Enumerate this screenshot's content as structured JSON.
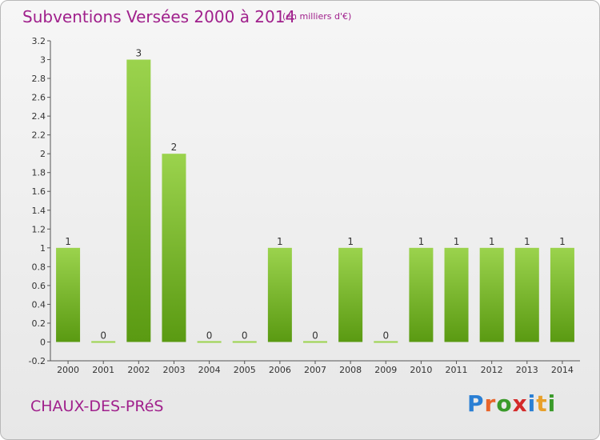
{
  "title": "Subventions Versées 2000 à 2014",
  "subtitle": "(en milliers d'€)",
  "city": "CHAUX-DES-PRéS",
  "logo": {
    "text": "Proxiti",
    "letter_colors": [
      "#2a7fd4",
      "#e8642a",
      "#3a9a2a",
      "#d42a2a",
      "#2a7fd4",
      "#e8a02a",
      "#3a9a2a"
    ]
  },
  "colors": {
    "title": "#a0208c",
    "bar_top": "#9bd34d",
    "bar_bottom": "#5a9a12"
  },
  "chart_data": {
    "type": "bar",
    "title": "Subventions Versées 2000 à 2014",
    "categories": [
      "2000",
      "2001",
      "2002",
      "2003",
      "2004",
      "2005",
      "2006",
      "2007",
      "2008",
      "2009",
      "2010",
      "2011",
      "2012",
      "2013",
      "2014"
    ],
    "values": [
      1,
      0,
      3,
      2,
      0,
      0,
      1,
      0,
      1,
      0,
      1,
      1,
      1,
      1,
      1
    ],
    "value_labels": [
      "1",
      "0",
      "3",
      "2",
      "0",
      "0",
      "1",
      "0",
      "1",
      "0",
      "1",
      "1",
      "1",
      "1",
      "1"
    ],
    "yticks": [
      "-0.2",
      "0",
      "0.2",
      "0.4",
      "0.6",
      "0.8",
      "1",
      "1.2",
      "1.4",
      "1.6",
      "1.8",
      "2",
      "2.2",
      "2.4",
      "2.6",
      "2.8",
      "3",
      "3.2"
    ],
    "ytick_values": [
      -0.2,
      0,
      0.2,
      0.4,
      0.6,
      0.8,
      1,
      1.2,
      1.4,
      1.6,
      1.8,
      2,
      2.2,
      2.4,
      2.6,
      2.8,
      3,
      3.2
    ],
    "ylim": [
      -0.2,
      3.2
    ],
    "grid": false
  }
}
